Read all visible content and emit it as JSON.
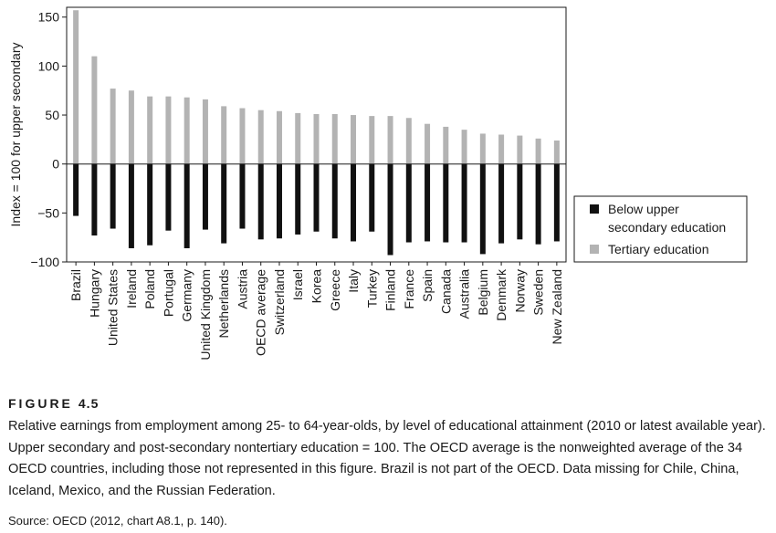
{
  "chart_data": {
    "type": "bar",
    "ylabel": "Index = 100 for upper secondary",
    "ylim": [
      -100,
      160
    ],
    "yticks": [
      150,
      100,
      50,
      0,
      -50,
      -100
    ],
    "ytick_labels": [
      "150",
      "100",
      "50",
      "0",
      "−50",
      "−100"
    ],
    "categories": [
      "Brazil",
      "Hungary",
      "United States",
      "Ireland",
      "Poland",
      "Portugal",
      "Germany",
      "United Kingdom",
      "Netherlands",
      "Austria",
      "OECD average",
      "Switzerland",
      "Israel",
      "Korea",
      "Greece",
      "Italy",
      "Turkey",
      "Finland",
      "France",
      "Spain",
      "Canada",
      "Australia",
      "Belgium",
      "Denmark",
      "Norway",
      "Sweden",
      "New Zealand"
    ],
    "series": [
      {
        "name": "Below upper secondary education",
        "color": "#111111",
        "values": [
          -53,
          -73,
          -66,
          -86,
          -83,
          -68,
          -86,
          -67,
          -81,
          -66,
          -77,
          -76,
          -72,
          -69,
          -76,
          -79,
          -69,
          -93,
          -80,
          -79,
          -80,
          -80,
          -92,
          -81,
          -77,
          -82,
          -79
        ]
      },
      {
        "name": "Tertiary education",
        "color": "#b3b3b3",
        "values": [
          157,
          110,
          77,
          75,
          69,
          69,
          68,
          66,
          59,
          57,
          55,
          54,
          52,
          51,
          51,
          50,
          49,
          49,
          47,
          41,
          38,
          35,
          31,
          30,
          29,
          26,
          24
        ]
      }
    ],
    "legend_position": "right"
  },
  "legend": {
    "below_line1": "Below upper",
    "below_line2": "secondary education",
    "tertiary": "Tertiary education"
  },
  "figure": {
    "label": "Figure",
    "number": "4.5",
    "caption": "Relative earnings from employment among 25- to 64-year-olds, by level of educational attainment (2010 or latest available year). Upper secondary and post-secondary nontertiary education = 100. The OECD average is the nonweighted average of the 34 OECD countries, including those not represented in this figure. Brazil is not part of the OECD. Data missing for Chile, China, Iceland, Mexico, and the Russian Federation.",
    "source": "Source: OECD (2012, chart A8.1, p. 140)."
  }
}
